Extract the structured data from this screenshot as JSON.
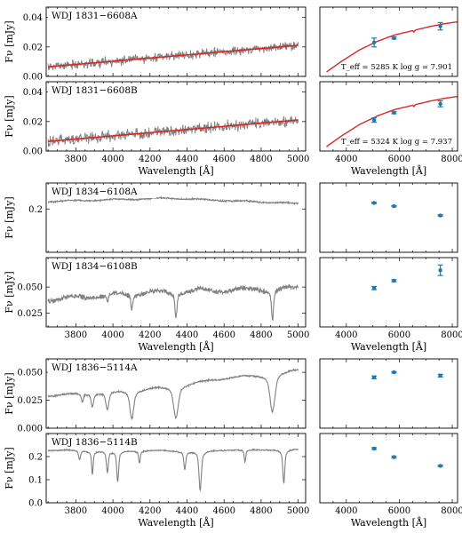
{
  "figure": {
    "spectrum_xlabel": "Wavelength [Å]",
    "photometry_xlabel": "Wavelength [Å]",
    "ylabel": "Fν [mJy]",
    "spectrum_xticks": [
      3800,
      4000,
      4200,
      4400,
      4600,
      4800,
      5000
    ],
    "photometry_xticks": [
      4000,
      6000,
      8000
    ],
    "colors": {
      "spectrum": "#808080",
      "model": "#d62728",
      "photometry": "#1f77b4"
    }
  },
  "chart_data": [
    {
      "type": "line",
      "panel": "1831A spectrum",
      "label": "WDJ 1831−6608A",
      "xlim": [
        3640,
        5040
      ],
      "ylim": [
        0,
        0.047
      ],
      "yticks": [
        "0.00",
        "0.02",
        "0.04"
      ],
      "series": [
        {
          "kind": "noisy-spectrum",
          "continuum": [
            [
              3650,
              0.0065
            ],
            [
              5000,
              0.021
            ]
          ],
          "noise": 0.004
        },
        {
          "kind": "model",
          "x": [
            3650,
            5000
          ],
          "y": [
            0.0065,
            0.021
          ]
        }
      ]
    },
    {
      "type": "scatter",
      "panel": "1831A photometry",
      "xlim": [
        3000,
        8200
      ],
      "ylim": [
        0,
        0.047
      ],
      "yticks": [],
      "annotation": "T_eff = 5285 K log g = 7.901",
      "points": [
        {
          "x": 5050,
          "y": 0.023,
          "err": 0.003
        },
        {
          "x": 5800,
          "y": 0.026,
          "err": 0.0007
        },
        {
          "x": 7550,
          "y": 0.034,
          "err": 0.0025
        }
      ],
      "model": {
        "x": [
          3250,
          3800,
          4500,
          5200,
          5800,
          6500,
          7200,
          7800,
          8200
        ],
        "y": [
          0.003,
          0.01,
          0.018,
          0.024,
          0.028,
          0.031,
          0.034,
          0.036,
          0.037
        ],
        "halpha": 6563
      }
    },
    {
      "type": "line",
      "panel": "1831B spectrum",
      "label": "WDJ 1831−6608B",
      "xlim": [
        3640,
        5040
      ],
      "ylim": [
        0,
        0.047
      ],
      "yticks": [
        "0.00",
        "0.02",
        "0.04"
      ],
      "series": [
        {
          "kind": "noisy-spectrum",
          "continuum": [
            [
              3650,
              0.0065
            ],
            [
              5000,
              0.021
            ]
          ],
          "noise": 0.0045
        },
        {
          "kind": "model",
          "x": [
            3650,
            5000
          ],
          "y": [
            0.0065,
            0.021
          ]
        }
      ]
    },
    {
      "type": "scatter",
      "panel": "1831B photometry",
      "xlim": [
        3000,
        8200
      ],
      "ylim": [
        0,
        0.047
      ],
      "yticks": [],
      "annotation": "T_eff = 5324 K log g = 7.937",
      "points": [
        {
          "x": 5050,
          "y": 0.021,
          "err": 0.0015
        },
        {
          "x": 5800,
          "y": 0.026,
          "err": 0.0007
        },
        {
          "x": 7550,
          "y": 0.032,
          "err": 0.002
        }
      ],
      "model": {
        "x": [
          3250,
          3800,
          4500,
          5200,
          5800,
          6500,
          7200,
          7800,
          8200
        ],
        "y": [
          0.003,
          0.01,
          0.018,
          0.024,
          0.028,
          0.031,
          0.034,
          0.036,
          0.037
        ],
        "halpha": 6563
      }
    },
    {
      "type": "line",
      "panel": "1834A spectrum",
      "label": "WDJ 1834−6108A",
      "xlim": [
        3640,
        5040
      ],
      "ylim": [
        0,
        0.32
      ],
      "yticks": [
        "0.2"
      ],
      "ytick_values": [
        0.2
      ],
      "series": [
        {
          "kind": "smooth-spectrum",
          "continuum": [
            [
              3650,
              0.235
            ],
            [
              4300,
              0.25
            ],
            [
              5000,
              0.225
            ]
          ],
          "noise": 0.004,
          "lines": []
        }
      ]
    },
    {
      "type": "scatter",
      "panel": "1834A photometry",
      "xlim": [
        3000,
        8200
      ],
      "ylim": [
        0,
        0.32
      ],
      "yticks": [],
      "points": [
        {
          "x": 5050,
          "y": 0.228,
          "err": 0.003
        },
        {
          "x": 5800,
          "y": 0.213,
          "err": 0.003
        },
        {
          "x": 7550,
          "y": 0.17,
          "err": 0.003
        }
      ]
    },
    {
      "type": "line",
      "panel": "1834B spectrum",
      "label": "WDJ 1834−6108B",
      "xlim": [
        3640,
        5040
      ],
      "ylim": [
        0.012,
        0.078
      ],
      "yticks": [
        "0.025",
        "0.050"
      ],
      "ytick_values": [
        0.025,
        0.05
      ],
      "series": [
        {
          "kind": "smooth-spectrum",
          "continuum": [
            [
              3650,
              0.038
            ],
            [
              4200,
              0.045
            ],
            [
              5000,
              0.049
            ]
          ],
          "noise": 0.0028,
          "lines": [
            [
              3970,
              0.005,
              4
            ],
            [
              4102,
              0.01,
              5
            ],
            [
              4340,
              0.018,
              5
            ],
            [
              4861,
              0.022,
              5
            ]
          ]
        }
      ]
    },
    {
      "type": "scatter",
      "panel": "1834B photometry",
      "xlim": [
        3000,
        8200
      ],
      "ylim": [
        0.012,
        0.078
      ],
      "yticks": [],
      "points": [
        {
          "x": 5050,
          "y": 0.049,
          "err": 0.0015
        },
        {
          "x": 5800,
          "y": 0.056,
          "err": 0.001
        },
        {
          "x": 7550,
          "y": 0.066,
          "err": 0.005
        }
      ]
    },
    {
      "type": "line",
      "panel": "1836A spectrum",
      "label": "WDJ 1836−5114A",
      "xlim": [
        3640,
        5040
      ],
      "ylim": [
        0,
        0.062
      ],
      "yticks": [
        "0.000",
        "0.025",
        "0.050"
      ],
      "ytick_values": [
        0,
        0.025,
        0.05
      ],
      "series": [
        {
          "kind": "smooth-spectrum",
          "continuum": [
            [
              3650,
              0.029
            ],
            [
              4200,
              0.036
            ],
            [
              5000,
              0.053
            ]
          ],
          "noise": 0.0009,
          "lines": [
            [
              3835,
              0.006,
              5
            ],
            [
              3889,
              0.009,
              6
            ],
            [
              3970,
              0.012,
              8
            ],
            [
              4102,
              0.019,
              10
            ],
            [
              4340,
              0.022,
              12
            ],
            [
              4861,
              0.026,
              13
            ]
          ]
        }
      ]
    },
    {
      "type": "scatter",
      "panel": "1836A photometry",
      "xlim": [
        3000,
        8200
      ],
      "ylim": [
        0,
        0.062
      ],
      "yticks": [],
      "points": [
        {
          "x": 5050,
          "y": 0.0455,
          "err": 0.0012
        },
        {
          "x": 5800,
          "y": 0.05,
          "err": 0.0006
        },
        {
          "x": 7550,
          "y": 0.047,
          "err": 0.0012
        }
      ]
    },
    {
      "type": "line",
      "panel": "1836B spectrum",
      "label": "WDJ 1836−5114B",
      "xlim": [
        3640,
        5040
      ],
      "ylim": [
        0,
        0.3
      ],
      "yticks": [
        "0.0",
        "0.1",
        "0.2"
      ],
      "ytick_values": [
        0,
        0.1,
        0.2
      ],
      "series": [
        {
          "kind": "smooth-spectrum",
          "continuum": [
            [
              3650,
              0.228
            ],
            [
              4300,
              0.225
            ],
            [
              5000,
              0.232
            ]
          ],
          "noise": 0.003,
          "lines": [
            [
              3820,
              0.03,
              5
            ],
            [
              3889,
              0.075,
              4
            ],
            [
              3970,
              0.07,
              5
            ],
            [
              4026,
              0.1,
              5
            ],
            [
              4143,
              0.04,
              4
            ],
            [
              4388,
              0.06,
              5
            ],
            [
              4471,
              0.13,
              6
            ],
            [
              4713,
              0.04,
              4
            ],
            [
              4922,
              0.11,
              5
            ]
          ]
        }
      ]
    },
    {
      "type": "scatter",
      "panel": "1836B photometry",
      "xlim": [
        3000,
        8200
      ],
      "ylim": [
        0,
        0.3
      ],
      "yticks": [],
      "points": [
        {
          "x": 5050,
          "y": 0.235,
          "err": 0.004
        },
        {
          "x": 5800,
          "y": 0.198,
          "err": 0.004
        },
        {
          "x": 7550,
          "y": 0.16,
          "err": 0.003
        }
      ]
    }
  ]
}
